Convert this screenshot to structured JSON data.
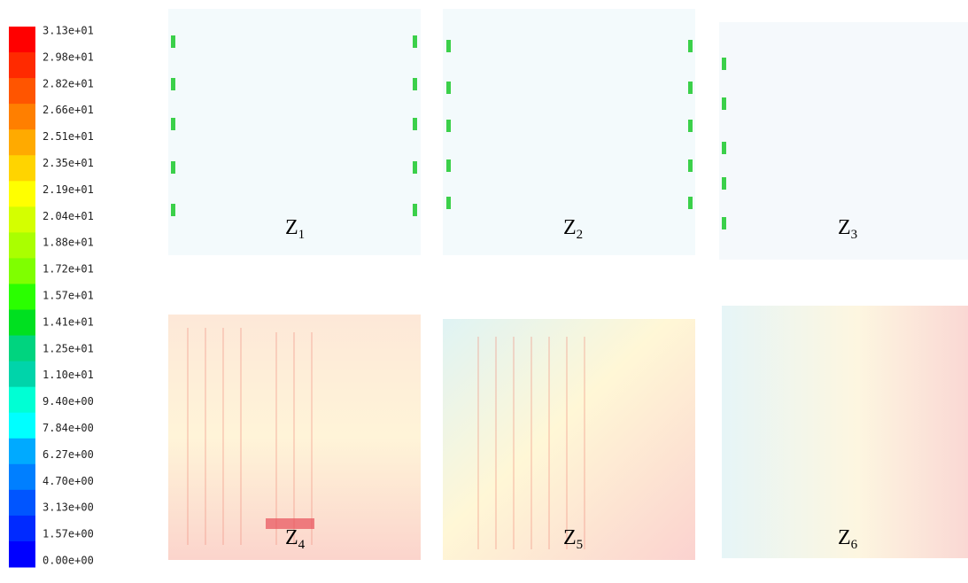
{
  "legend": {
    "labels": [
      "3.13e+01",
      "2.98e+01",
      "2.82e+01",
      "2.66e+01",
      "2.51e+01",
      "2.35e+01",
      "2.19e+01",
      "2.04e+01",
      "1.88e+01",
      "1.72e+01",
      "1.57e+01",
      "1.41e+01",
      "1.25e+01",
      "1.10e+01",
      "9.40e+00",
      "7.84e+00",
      "6.27e+00",
      "4.70e+00",
      "3.13e+00",
      "1.57e+00",
      "0.00e+00"
    ],
    "colors": [
      "#ff0000",
      "#ff2a00",
      "#ff5500",
      "#ff7f00",
      "#ffaa00",
      "#ffd400",
      "#ffff00",
      "#d4ff00",
      "#aaff00",
      "#7fff00",
      "#2aff00",
      "#00e020",
      "#00d47f",
      "#00d4aa",
      "#00ffd4",
      "#00ffff",
      "#00aaff",
      "#007fff",
      "#0055ff",
      "#002aff",
      "#0000ff"
    ]
  },
  "panels": [
    {
      "label": "Z",
      "sub": "1"
    },
    {
      "label": "Z",
      "sub": "2"
    },
    {
      "label": "Z",
      "sub": "3"
    },
    {
      "label": "Z",
      "sub": "4"
    },
    {
      "label": "Z",
      "sub": "5"
    },
    {
      "label": "Z",
      "sub": "6"
    }
  ]
}
